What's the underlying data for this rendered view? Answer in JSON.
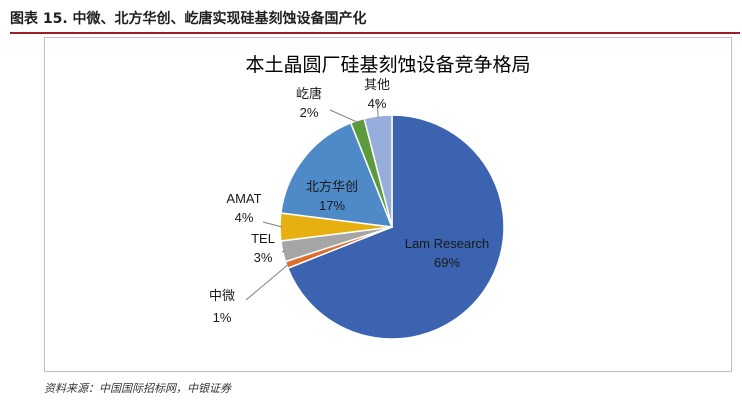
{
  "caption": "图表 15. 中微、北方华创、屹唐实现硅基刻蚀设备国产化",
  "source": "资料来源：中国国际招标网，中银证券",
  "chart_data": {
    "type": "pie",
    "title": "本土晶圆厂硅基刻蚀设备竞争格局",
    "slices": [
      {
        "name": "Lam Research",
        "value": 69,
        "label": "69%",
        "color": "#3c63b0"
      },
      {
        "name": "中微",
        "value": 1,
        "label": "1%",
        "color": "#dd6e2b"
      },
      {
        "name": "TEL",
        "value": 3,
        "label": "3%",
        "color": "#a5a5a5"
      },
      {
        "name": "AMAT",
        "value": 4,
        "label": "4%",
        "color": "#e6b010"
      },
      {
        "name": "北方华创",
        "value": 17,
        "label": "17%",
        "color": "#4f8ac8"
      },
      {
        "name": "屹唐",
        "value": 2,
        "label": "2%",
        "color": "#5b9b3b"
      },
      {
        "name": "其他",
        "value": 4,
        "label": "4%",
        "color": "#97aedc"
      }
    ]
  }
}
